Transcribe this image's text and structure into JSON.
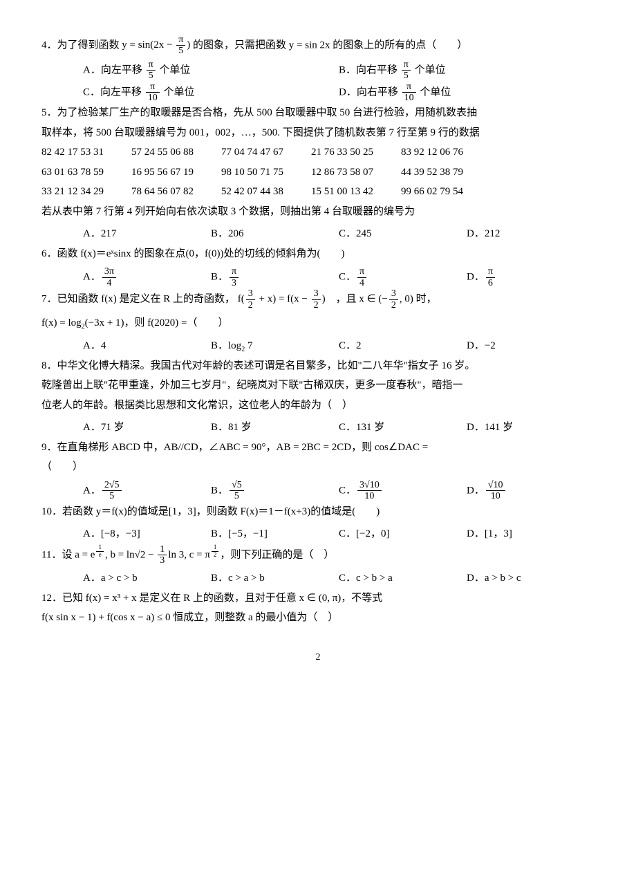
{
  "page_number": "2",
  "q4": {
    "stem_pre": "4．为了得到函数 ",
    "stem_mid": " 的图象，只需把函数 ",
    "stem_post": " 的图象上的所有的点（　　）",
    "func1_pre": "y = sin(2x − ",
    "func1_post": ")",
    "frac1_num": "π",
    "frac1_den": "5",
    "func2": "y = sin 2x",
    "A_pre": "A．向左平移 ",
    "A_post": " 个单位",
    "A_num": "π",
    "A_den": "5",
    "B_pre": "B．向右平移 ",
    "B_post": " 个单位",
    "B_num": "π",
    "B_den": "5",
    "C_pre": "C．向左平移 ",
    "C_post": " 个单位",
    "C_num": "π",
    "C_den": "10",
    "D_pre": "D．向右平移 ",
    "D_post": " 个单位",
    "D_num": "π",
    "D_den": "10"
  },
  "q5": {
    "line1": "5．为了检验某厂生产的取暖器是否合格，先从 500 台取暖器中取 50 台进行检验，用随机数表抽",
    "line2": "取样本，将 500 台取暖器编号为 001，002，…，500. 下图提供了随机数表第 7 行至第 9 行的数据",
    "r1c1": "82 42 17 53 31",
    "r1c2": "57 24 55 06 88",
    "r1c3": "77 04 74 47 67",
    "r1c4": "21 76 33 50 25",
    "r1c5": "83 92 12 06 76",
    "r2c1": "63 01 63 78 59",
    "r2c2": "16 95 56 67 19",
    "r2c3": "98 10 50 71 75",
    "r2c4": "12 86 73 58 07",
    "r2c5": "44 39 52 38 79",
    "r3c1": "33 21 12 34 29",
    "r3c2": "78 64 56 07 82",
    "r3c3": "52 42 07 44 38",
    "r3c4": "15 51 00 13 42",
    "r3c5": "99 66 02 79 54",
    "line3": "若从表中第 7 行第 4 列开始向右依次读取 3 个数据，则抽出第 4 台取暖器的编号为",
    "A": "A．217",
    "B": "B．206",
    "C": "C．245",
    "D": "D．212"
  },
  "q6": {
    "stem": "6．函数 f(x)＝eˣsinx 的图象在点(0，f(0))处的切线的倾斜角为(　　)",
    "A_pre": "A．",
    "A_num": "3π",
    "A_den": "4",
    "B_pre": "B．",
    "B_num": "π",
    "B_den": "3",
    "C_pre": "C．",
    "C_num": "π",
    "C_den": "4",
    "D_pre": "D．",
    "D_num": "π",
    "D_den": "6"
  },
  "q7": {
    "stem_a": "7．已知函数 f(x) 是定义在 R 上的奇函数，",
    "stem_b": "f(",
    "f_arg1_num": "3",
    "f_arg1_den": "2",
    "stem_c": " + x) = f(x − ",
    "f_arg2_num": "3",
    "f_arg2_den": "2",
    "stem_d": ")　，且 x ∈ (−",
    "int_num": "3",
    "int_den": "2",
    "stem_e": ", 0) 时，",
    "line2a": "f(x) = log",
    "line2b": "(−3x + 1)，则 f(2020) =（　　）",
    "A": "A．4",
    "B_pre": "B．log",
    "B_post": " 7",
    "C": "C．2",
    "D": "D．−2"
  },
  "q8": {
    "l1": "8．中华文化博大精深。我国古代对年龄的表述可谓是名目繁多，比如\"二八年华\"指女子 16 岁。",
    "l2": "乾隆曾出上联\"花甲重逢，外加三七岁月\"，纪晓岚对下联\"古稀双庆，更多一度春秋\"，暗指一",
    "l3": "位老人的年龄。根据类比思想和文化常识，这位老人的年龄为（　）",
    "A": "A．71 岁",
    "B": "B．81 岁",
    "C": "C．131 岁",
    "D": "D．141 岁"
  },
  "q9": {
    "stem": "9．在直角梯形 ABCD 中，AB//CD，∠ABC = 90°，AB = 2BC = 2CD，则 cos∠DAC =",
    "paren": "（　　）",
    "A_pre": "A．",
    "A_num": "2√5",
    "A_den": "5",
    "B_pre": "B．",
    "B_num": "√5",
    "B_den": "5",
    "C_pre": "C．",
    "C_num": "3√10",
    "C_den": "10",
    "D_pre": "D．",
    "D_num": "√10",
    "D_den": "10"
  },
  "q10": {
    "stem": "10．若函数 y＝f(x)的值域是[1，3]，则函数 F(x)＝1－f(x+3)的值域是(　　)",
    "A": "A．[−8，−3]",
    "B": "B．[−5，−1]",
    "C": "C．[−2，0]",
    "D": "D．[1，3]"
  },
  "q11": {
    "stem_a": "11．设 a = e",
    "exp_num": "1",
    "exp_den": "e",
    "stem_b": ", b = ln√2 − ",
    "b_num": "1",
    "b_den": "3",
    "stem_c": "ln 3, c = π",
    "c_num": "1",
    "c_den": "2",
    "stem_d": "，则下列正确的是（　）",
    "A": "A．a > c > b",
    "B": "B．c > a > b",
    "C": "C．c > b > a",
    "D": "D．a > b > c"
  },
  "q12": {
    "l1": "12．已知 f(x) = x³ + x 是定义在 R 上的函数，且对于任意 x ∈ (0, π)，不等式",
    "l2": "f(x sin x − 1) + f(cos x − a) ≤ 0 恒成立，则整数 a 的最小值为（　）"
  }
}
